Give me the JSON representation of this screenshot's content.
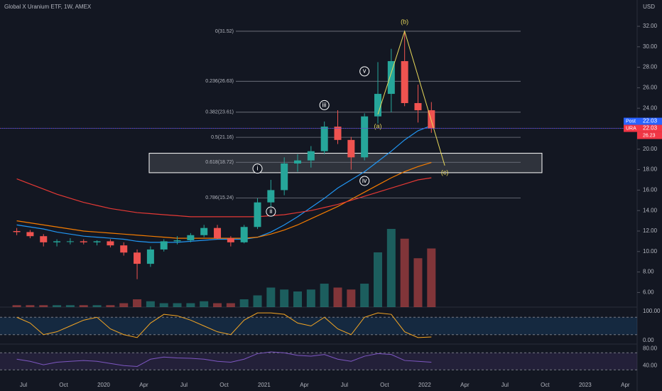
{
  "chart_data": {
    "type": "candlestick",
    "title": "Global X Uranium ETF, 1W, AMEX",
    "currency": "USD",
    "x": [
      "2019-06",
      "2019-07",
      "2019-08",
      "2019-09",
      "2019-10",
      "2019-11",
      "2019-12",
      "2020-01",
      "2020-02",
      "2020-03",
      "2020-04",
      "2020-05",
      "2020-06",
      "2020-07",
      "2020-08",
      "2020-09",
      "2020-10",
      "2020-11",
      "2020-12",
      "2021-01",
      "2021-02",
      "2021-03",
      "2021-04",
      "2021-05",
      "2021-06",
      "2021-07",
      "2021-08",
      "2021-09",
      "2021-10",
      "2021-11",
      "2021-12",
      "2022-01"
    ],
    "open": [
      12.0,
      11.9,
      11.5,
      10.9,
      11.0,
      11.0,
      10.9,
      11.0,
      10.6,
      9.9,
      8.8,
      10.2,
      11.0,
      11.1,
      11.6,
      12.3,
      11.3,
      10.9,
      12.4,
      14.8,
      16.0,
      18.6,
      18.9,
      19.8,
      22.2,
      20.9,
      19.2,
      23.2,
      25.4,
      28.6,
      24.5,
      23.8
    ],
    "high": [
      12.3,
      12.1,
      11.7,
      11.2,
      11.3,
      11.2,
      11.1,
      11.2,
      10.9,
      10.2,
      10.5,
      11.2,
      11.5,
      11.8,
      12.6,
      12.6,
      11.5,
      12.6,
      15.2,
      17.0,
      19.2,
      19.5,
      20.3,
      22.7,
      23.8,
      21.2,
      23.5,
      28.5,
      29.8,
      31.52,
      26.3,
      24.6
    ],
    "low": [
      11.6,
      11.3,
      10.5,
      10.5,
      10.7,
      10.7,
      10.6,
      10.4,
      9.6,
      7.3,
      8.5,
      10.0,
      10.7,
      10.9,
      11.4,
      11.2,
      10.5,
      10.8,
      12.2,
      14.3,
      15.5,
      17.8,
      18.2,
      19.5,
      20.5,
      18.0,
      18.9,
      22.5,
      23.6,
      24.2,
      22.6,
      21.6
    ],
    "close": [
      11.9,
      11.5,
      10.9,
      11.0,
      11.0,
      10.9,
      11.0,
      10.6,
      9.9,
      8.8,
      10.2,
      11.0,
      11.1,
      11.6,
      12.3,
      11.3,
      10.9,
      12.4,
      14.8,
      16.0,
      18.6,
      18.9,
      19.8,
      22.2,
      20.9,
      19.2,
      23.2,
      25.4,
      28.6,
      24.5,
      23.8,
      22.03
    ],
    "volume": [
      1,
      1,
      1,
      1,
      1,
      1,
      1,
      1,
      2,
      4,
      3,
      2,
      2,
      2,
      3,
      2,
      2,
      4,
      6,
      10,
      9,
      8,
      9,
      12,
      10,
      9,
      12,
      28,
      40,
      35,
      25,
      30
    ],
    "vlim": [
      0,
      40
    ],
    "up_color": "#26a69a",
    "down_color": "#ef5350",
    "ma_lines": [
      {
        "color": "#2196f3",
        "values": [
          12.6,
          12.4,
          12.2,
          11.9,
          11.7,
          11.5,
          11.4,
          11.3,
          11.2,
          11.0,
          10.9,
          10.9,
          10.9,
          11.0,
          11.1,
          11.2,
          11.2,
          11.2,
          11.4,
          11.9,
          12.6,
          13.4,
          14.3,
          15.2,
          16.2,
          17.0,
          17.8,
          18.8,
          19.8,
          20.9,
          21.8,
          22.3
        ]
      },
      {
        "color": "#f57c00",
        "values": [
          13.0,
          12.8,
          12.6,
          12.4,
          12.2,
          12.0,
          11.9,
          11.8,
          11.7,
          11.6,
          11.5,
          11.4,
          11.3,
          11.3,
          11.3,
          11.3,
          11.3,
          11.3,
          11.4,
          11.7,
          12.1,
          12.6,
          13.2,
          13.8,
          14.4,
          15.1,
          15.8,
          16.5,
          17.2,
          17.8,
          18.3,
          18.7
        ]
      },
      {
        "color": "#e53935",
        "values": [
          17.1,
          16.6,
          16.1,
          15.6,
          15.2,
          14.8,
          14.5,
          14.2,
          14.0,
          13.8,
          13.7,
          13.6,
          13.5,
          13.4,
          13.4,
          13.4,
          13.4,
          13.4,
          13.4,
          13.5,
          13.6,
          13.8,
          14.0,
          14.3,
          14.6,
          15.0,
          15.4,
          15.8,
          16.2,
          16.6,
          17.0,
          17.2
        ]
      }
    ],
    "ylim": [
      4.57,
      34.57
    ],
    "yticks": [
      {
        "value": 32,
        "label": "32.00"
      },
      {
        "value": 30,
        "label": "30.00"
      },
      {
        "value": 28,
        "label": "28.00"
      },
      {
        "value": 26,
        "label": "26.00"
      },
      {
        "value": 24,
        "label": "24.00"
      },
      {
        "value": 22,
        "label": "22.00"
      },
      {
        "value": 20,
        "label": "20.00"
      },
      {
        "value": 18,
        "label": "18.00"
      },
      {
        "value": 16,
        "label": "16.00"
      },
      {
        "value": 14,
        "label": "14.00"
      },
      {
        "value": 12,
        "label": "12.00"
      },
      {
        "value": 10,
        "label": "10.00"
      },
      {
        "value": 8,
        "label": "8.00"
      },
      {
        "value": 6,
        "label": "6.00"
      }
    ],
    "xticks": [
      {
        "value": "2019-07",
        "label": "Jul"
      },
      {
        "value": "2019-10",
        "label": "Oct"
      },
      {
        "value": "2020-01",
        "label": "2020"
      },
      {
        "value": "2020-04",
        "label": "Apr"
      },
      {
        "value": "2020-07",
        "label": "Jul"
      },
      {
        "value": "2020-10",
        "label": "Oct"
      },
      {
        "value": "2021-01",
        "label": "2021"
      },
      {
        "value": "2021-04",
        "label": "Apr"
      },
      {
        "value": "2021-07",
        "label": "Jul"
      },
      {
        "value": "2021-10",
        "label": "Oct"
      },
      {
        "value": "2022-01",
        "label": "2022"
      },
      {
        "value": "2022-04",
        "label": "Apr"
      },
      {
        "value": "2022-07",
        "label": "Jul"
      },
      {
        "value": "2022-10",
        "label": "Oct"
      },
      {
        "value": "2023-01",
        "label": "2023"
      },
      {
        "value": "2023-04",
        "label": "Apr"
      }
    ],
    "fib_levels": [
      {
        "value": 31.52,
        "label": "0(31.52)"
      },
      {
        "value": 26.63,
        "label": "0.236(26.63)"
      },
      {
        "value": 23.61,
        "label": "0.382(23.61)"
      },
      {
        "value": 21.16,
        "label": "0.5(21.16)"
      },
      {
        "value": 18.72,
        "label": "0.618(18.72)"
      },
      {
        "value": 15.24,
        "label": "0.786(15.24)"
      }
    ],
    "zone": [
      17.7,
      19.6
    ],
    "wave_line": {
      "x": [
        "2021-09",
        "2021-11",
        "2022-02"
      ],
      "y": [
        23.4,
        31.52,
        18.4
      ]
    },
    "annotations": [
      {
        "text": "(b)",
        "x": "2021-11",
        "y": 32.4,
        "style": "plain"
      },
      {
        "text": "(a)",
        "x": "2021-09",
        "y": 22.2,
        "style": "plain"
      },
      {
        "text": "(c)",
        "x": "2022-02",
        "y": 17.7,
        "style": "plain"
      },
      {
        "text": "v",
        "x": "2021-08",
        "y": 27.6,
        "style": "circle"
      },
      {
        "text": "iii",
        "x": "2021-05",
        "y": 24.3,
        "style": "circle"
      },
      {
        "text": "i",
        "x": "2020-12",
        "y": 18.1,
        "style": "circle"
      },
      {
        "text": "ii",
        "x": "2021-01",
        "y": 13.9,
        "style": "circle"
      },
      {
        "text": "iv",
        "x": "2021-08",
        "y": 16.9,
        "style": "circle"
      }
    ],
    "price_tags": [
      {
        "label": "Post",
        "value": 22.03,
        "color": "#2962ff"
      },
      {
        "label": "URA",
        "value": 22.03,
        "color": "#f23645"
      }
    ],
    "countdown": "26.23",
    "stoch": {
      "k": [
        80,
        60,
        20,
        30,
        50,
        70,
        80,
        40,
        20,
        10,
        60,
        90,
        85,
        70,
        50,
        30,
        20,
        70,
        95,
        95,
        90,
        60,
        50,
        80,
        40,
        20,
        80,
        95,
        90,
        30,
        10,
        12
      ],
      "ylim": [
        -10,
        110
      ],
      "yticks": [
        {
          "value": 100,
          "label": "100.00"
        },
        {
          "value": 0,
          "label": "0.00"
        }
      ],
      "bands": [
        20,
        80
      ],
      "color": "#f5a623"
    },
    "rsi": {
      "values": [
        55,
        50,
        42,
        48,
        50,
        52,
        50,
        45,
        40,
        38,
        55,
        60,
        58,
        57,
        55,
        50,
        48,
        55,
        68,
        72,
        70,
        64,
        62,
        66,
        55,
        50,
        62,
        68,
        66,
        52,
        50,
        48
      ],
      "ylim": [
        -16,
        87
      ],
      "yticks": [
        {
          "value": 80,
          "label": "80.00"
        },
        {
          "value": 40,
          "label": "40.00"
        }
      ],
      "bands": [
        30,
        70
      ],
      "color": "#7e57c2"
    }
  }
}
